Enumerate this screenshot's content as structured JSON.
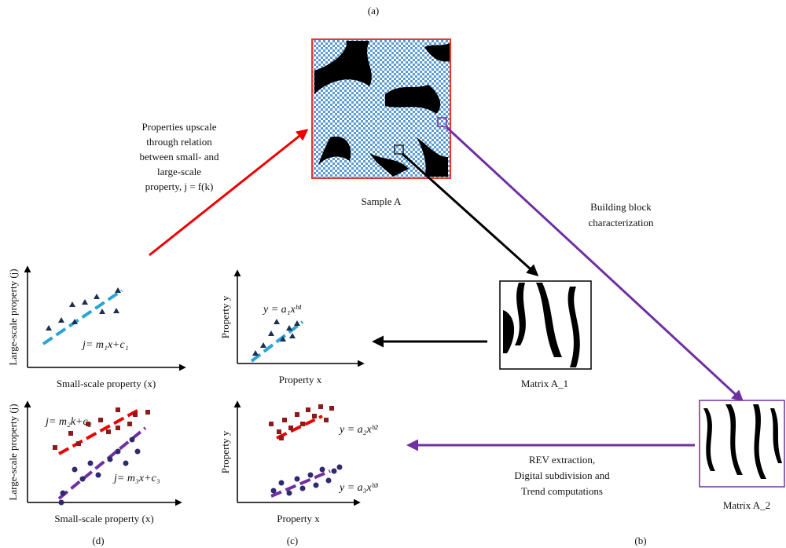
{
  "labels": {
    "a": "(a)",
    "b": "(b)",
    "c": "(c)",
    "d": "(d)"
  },
  "upscale_note": [
    "Properties upscale",
    "through relation",
    "between small- and",
    "large-scale",
    "property, j = f(k)"
  ],
  "sample": "Sample A",
  "building_block": [
    "Building block",
    "characterization"
  ],
  "matrix1": "Matrix A_1",
  "matrix2": "Matrix A_2",
  "rev_note": [
    "REV extraction,",
    "Digital subdivision and",
    "Trend computations"
  ],
  "plots": {
    "d_top": {
      "ylabel": "Large-scale property (j)",
      "xlabel": "Small-scale property (x)",
      "eq": "j= m₁x+c₁"
    },
    "d_bottom": {
      "ylabel": "Large-scale property (j)",
      "xlabel": "Small-scale property (x)",
      "eq1": "j= m₂k+c₂",
      "eq2": "j= m₃x+c₃"
    },
    "c_top": {
      "ylabel": "Property y",
      "xlabel": "Property x",
      "eq": "y = a₁xᵇ¹"
    },
    "c_bottom": {
      "ylabel": "Property y",
      "xlabel": "Property x",
      "eq1": "y = a₂xᵇ²",
      "eq2": "y = a₃xᵇ³"
    }
  }
}
